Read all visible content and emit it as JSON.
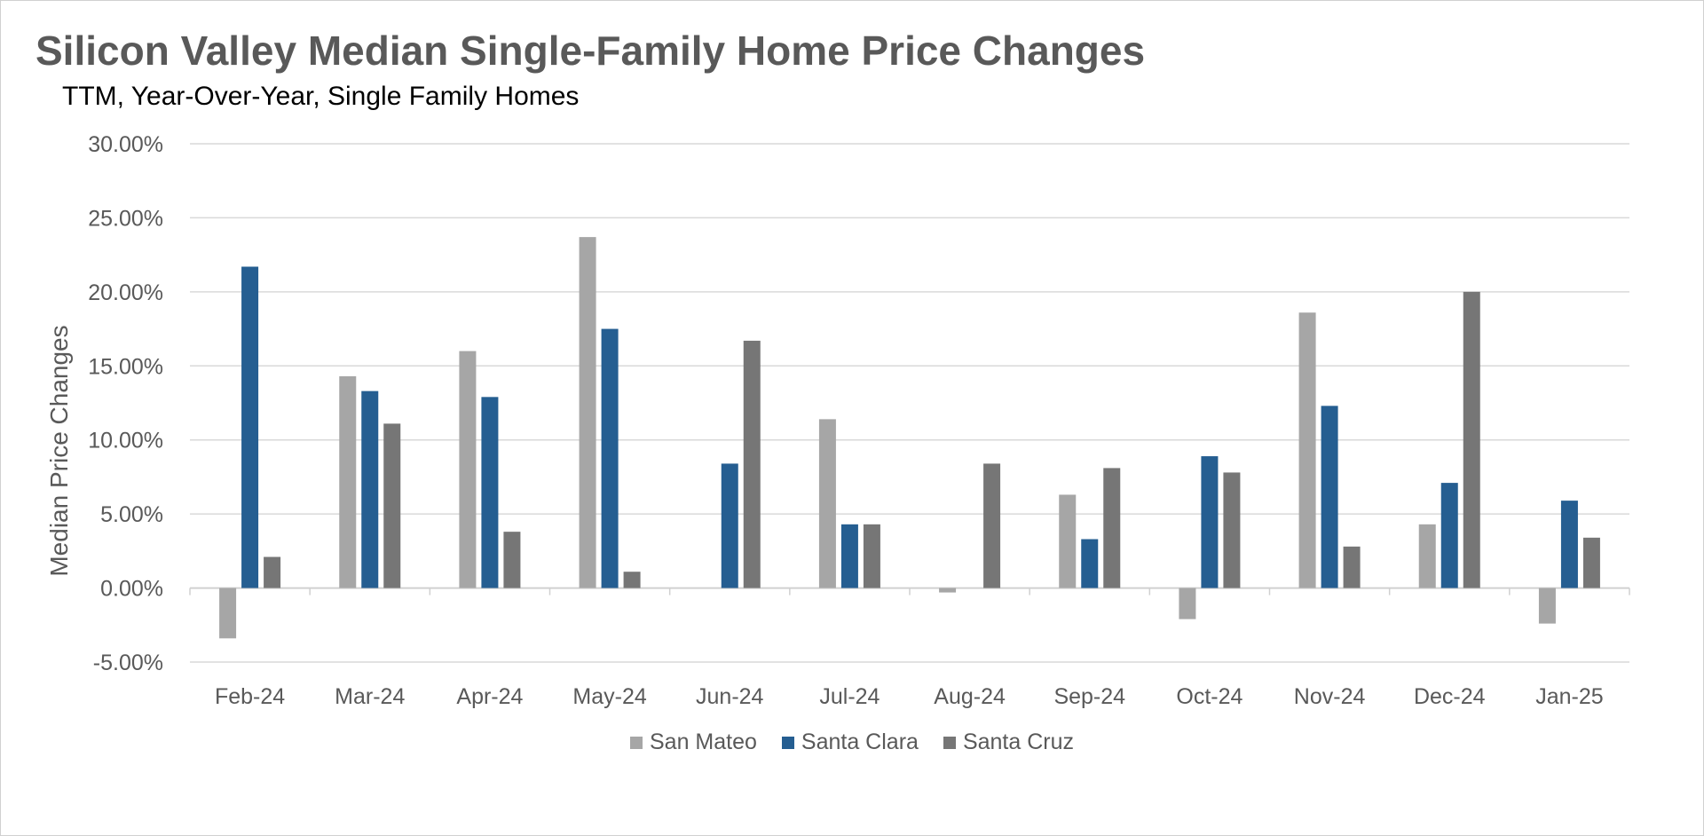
{
  "chart_data": {
    "type": "bar",
    "title": "Silicon Valley Median Single-Family Home Price Changes",
    "subtitle": "TTM, Year-Over-Year, Single Family Homes",
    "xlabel": "",
    "ylabel": "Median Price Changes",
    "ylim": [
      -0.05,
      0.3
    ],
    "y_ticks": [
      -0.05,
      0.0,
      0.05,
      0.1,
      0.15,
      0.2,
      0.25,
      0.3
    ],
    "y_tick_labels": [
      "-5.00%",
      "0.00%",
      "5.00%",
      "10.00%",
      "15.00%",
      "20.00%",
      "25.00%",
      "30.00%"
    ],
    "grid": "horizontal",
    "legend_position": "bottom",
    "categories": [
      "Feb-24",
      "Mar-24",
      "Apr-24",
      "May-24",
      "Jun-24",
      "Jul-24",
      "Aug-24",
      "Sep-24",
      "Oct-24",
      "Nov-24",
      "Dec-24",
      "Jan-25"
    ],
    "series": [
      {
        "name": "San Mateo",
        "color": "#a6a6a6",
        "values": [
          -0.034,
          0.143,
          0.16,
          0.237,
          0.0,
          0.114,
          -0.003,
          0.063,
          -0.021,
          0.186,
          0.043,
          -0.024
        ]
      },
      {
        "name": "Santa Clara",
        "color": "#255e91",
        "values": [
          0.217,
          0.133,
          0.129,
          0.175,
          0.084,
          0.043,
          0.0,
          0.033,
          0.089,
          0.123,
          0.071,
          0.059
        ]
      },
      {
        "name": "Santa Cruz",
        "color": "#767676",
        "values": [
          0.021,
          0.111,
          0.038,
          0.011,
          0.167,
          0.043,
          0.084,
          0.081,
          0.078,
          0.028,
          0.2,
          0.034
        ]
      }
    ]
  }
}
